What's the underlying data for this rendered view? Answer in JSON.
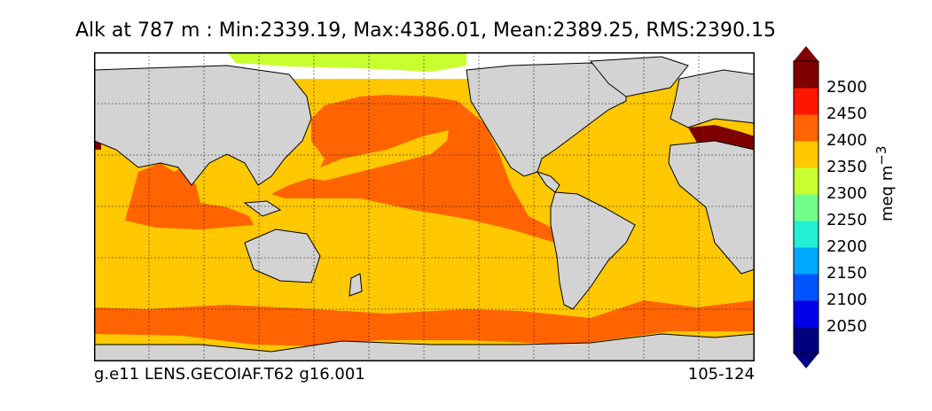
{
  "title": "Alk at 787 m : Min:2339.19, Max:4386.01, Mean:2389.25, RMS:2390.15",
  "footer": {
    "left": "g.e11 LENS.GECOIAF.T62 g16.001",
    "right": "105-124"
  },
  "colorbar": {
    "unit": "meq m",
    "unit_exponent": "−3",
    "ticks": [
      "2500",
      "2450",
      "2400",
      "2350",
      "2300",
      "2250",
      "2200",
      "2150",
      "2100",
      "2050"
    ],
    "colors": [
      "#00007f",
      "#0000e6",
      "#0055ff",
      "#00a8ff",
      "#22f0d4",
      "#6fff8a",
      "#c8ff2e",
      "#ffc800",
      "#ff6400",
      "#ff1600",
      "#7f0000"
    ]
  },
  "map_colors": {
    "land": "#d3d3d3",
    "ice": "#ffffff",
    "arctic": "#c8ff2e",
    "band_2350_2400": "#ffc800",
    "band_2400_2450": "#ff6400",
    "band_2450_2500": "#7f0000"
  }
}
